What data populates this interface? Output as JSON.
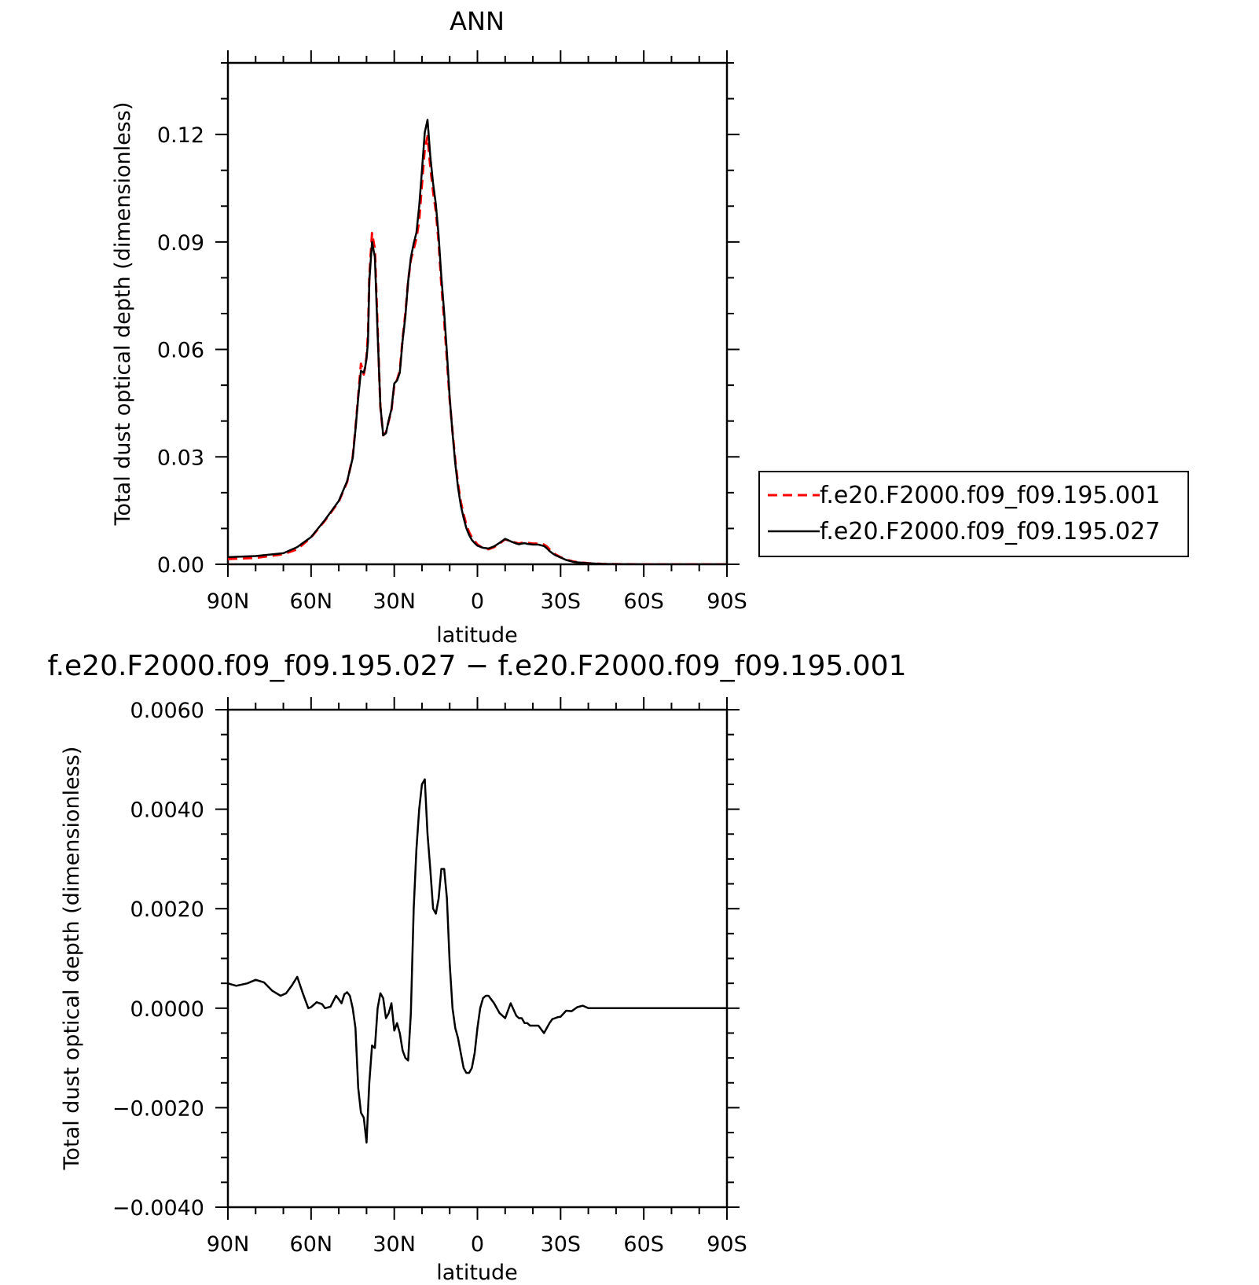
{
  "chart_data": [
    {
      "type": "line",
      "title": "ANN",
      "xlabel": "latitude",
      "ylabel": "Total dust optical depth (dimensionless)",
      "xlim": [
        90,
        -90
      ],
      "ylim": [
        0,
        0.14
      ],
      "x_ticks": [
        {
          "value": 90,
          "label": "90N"
        },
        {
          "value": 60,
          "label": "60N"
        },
        {
          "value": 30,
          "label": "30N"
        },
        {
          "value": 0,
          "label": "0"
        },
        {
          "value": -30,
          "label": "30S"
        },
        {
          "value": -60,
          "label": "60S"
        },
        {
          "value": -90,
          "label": "90S"
        }
      ],
      "y_ticks": [
        {
          "value": 0,
          "label": "0.00"
        },
        {
          "value": 0.03,
          "label": "0.03"
        },
        {
          "value": 0.06,
          "label": "0.06"
        },
        {
          "value": 0.09,
          "label": "0.09"
        },
        {
          "value": 0.12,
          "label": "0.12"
        }
      ],
      "legend_position": "right",
      "series": [
        {
          "name": "f.e20.F2000.f09_f09.195.001",
          "color": "#ff0000",
          "style": "dashed",
          "x": [
            90,
            80,
            70,
            65,
            60,
            55,
            50,
            47,
            45,
            44,
            43,
            42,
            41,
            40.5,
            40,
            39.5,
            39,
            38,
            37,
            36,
            35,
            34,
            33,
            32,
            31,
            30,
            29,
            28,
            27,
            26,
            25,
            24,
            23,
            22,
            21,
            20,
            19,
            18,
            17,
            16,
            15,
            14,
            13,
            12,
            11,
            10,
            9,
            8,
            7,
            6,
            5,
            4,
            3,
            2,
            1,
            0,
            -2,
            -4,
            -6,
            -8,
            -10,
            -12,
            -14,
            -15,
            -16,
            -17,
            -18,
            -20,
            -22,
            -24,
            -25,
            -26,
            -27,
            -28,
            -30,
            -32,
            -35,
            -40,
            -45,
            -50,
            -60,
            -70,
            -80,
            -90
          ],
          "y": [
            0.0015,
            0.0018,
            0.0028,
            0.0042,
            0.0075,
            0.0122,
            0.0175,
            0.023,
            0.03,
            0.038,
            0.047,
            0.056,
            0.053,
            0.055,
            0.058,
            0.064,
            0.08,
            0.0925,
            0.088,
            0.066,
            0.044,
            0.036,
            0.0368,
            0.04,
            0.043,
            0.05,
            0.0515,
            0.054,
            0.063,
            0.07,
            0.079,
            0.085,
            0.088,
            0.091,
            0.096,
            0.106,
            0.116,
            0.1195,
            0.111,
            0.104,
            0.0985,
            0.09,
            0.078,
            0.068,
            0.057,
            0.046,
            0.037,
            0.029,
            0.0225,
            0.0175,
            0.014,
            0.011,
            0.009,
            0.0075,
            0.0065,
            0.0055,
            0.0045,
            0.0042,
            0.0048,
            0.0058,
            0.007,
            0.0064,
            0.006,
            0.0058,
            0.006,
            0.0062,
            0.006,
            0.0058,
            0.0058,
            0.0055,
            0.005,
            0.0042,
            0.0034,
            0.0028,
            0.002,
            0.0013,
            0.0007,
            0.0003,
            0.0001,
            5e-05,
            0.0,
            0.0,
            0.0,
            0.0
          ]
        },
        {
          "name": "f.e20.F2000.f09_f09.195.027",
          "color": "#000000",
          "style": "solid",
          "x": [
            90,
            80,
            70,
            65,
            60,
            55,
            50,
            47,
            45,
            44,
            43,
            42,
            41,
            40.5,
            40,
            39.5,
            39,
            38,
            37,
            36,
            35,
            34,
            33,
            32,
            31,
            30,
            29,
            28,
            27,
            26,
            25,
            24,
            23,
            22,
            21,
            20,
            19,
            18,
            17,
            16,
            15,
            14,
            13,
            12,
            11,
            10,
            9,
            8,
            7,
            6,
            5,
            4,
            3,
            2,
            1,
            0,
            -2,
            -4,
            -6,
            -8,
            -10,
            -12,
            -14,
            -15,
            -16,
            -17,
            -18,
            -20,
            -22,
            -24,
            -25,
            -26,
            -27,
            -28,
            -30,
            -32,
            -35,
            -40,
            -45,
            -50,
            -60,
            -70,
            -80,
            -90
          ],
          "y": [
            0.002,
            0.0023,
            0.0031,
            0.0048,
            0.0076,
            0.0124,
            0.0177,
            0.0232,
            0.0297,
            0.0376,
            0.0465,
            0.054,
            0.0535,
            0.055,
            0.0575,
            0.062,
            0.079,
            0.09,
            0.0858,
            0.0644,
            0.0443,
            0.036,
            0.0366,
            0.0402,
            0.0433,
            0.0505,
            0.0513,
            0.0535,
            0.0625,
            0.0692,
            0.0789,
            0.0856,
            0.0896,
            0.0926,
            0.1,
            0.1099,
            0.1206,
            0.1241,
            0.114,
            0.1063,
            0.1005,
            0.0918,
            0.0802,
            0.0702,
            0.059,
            0.0465,
            0.0367,
            0.0282,
            0.0215,
            0.0165,
            0.013,
            0.0101,
            0.0082,
            0.0068,
            0.0059,
            0.0052,
            0.0046,
            0.0044,
            0.005,
            0.006,
            0.0071,
            0.0064,
            0.0058,
            0.0056,
            0.0058,
            0.0059,
            0.0057,
            0.0055,
            0.0055,
            0.0051,
            0.0045,
            0.0037,
            0.0031,
            0.0026,
            0.0019,
            0.0012,
            0.0006,
            0.0003,
            0.0001,
            5e-05,
            0.0,
            0.0,
            0.0,
            0.0
          ]
        }
      ]
    },
    {
      "type": "line",
      "title": "f.e20.F2000.f09_f09.195.027 − f.e20.F2000.f09_f09.195.001",
      "xlabel": "latitude",
      "ylabel": "Total dust optical depth (dimensionless)",
      "xlim": [
        90,
        -90
      ],
      "ylim": [
        -0.004,
        0.006
      ],
      "x_ticks": [
        {
          "value": 90,
          "label": "90N"
        },
        {
          "value": 60,
          "label": "60N"
        },
        {
          "value": 30,
          "label": "30N"
        },
        {
          "value": 0,
          "label": "0"
        },
        {
          "value": -30,
          "label": "30S"
        },
        {
          "value": -60,
          "label": "60S"
        },
        {
          "value": -90,
          "label": "90S"
        }
      ],
      "y_ticks": [
        {
          "value": -0.004,
          "label": "−0.0040"
        },
        {
          "value": -0.002,
          "label": "−0.0020"
        },
        {
          "value": 0,
          "label": "0.0000"
        },
        {
          "value": 0.002,
          "label": "0.0020"
        },
        {
          "value": 0.004,
          "label": "0.0040"
        },
        {
          "value": 0.006,
          "label": "0.0060"
        }
      ],
      "series": [
        {
          "color": "#000000",
          "style": "solid",
          "x": [
            90,
            87,
            83,
            80,
            77,
            74,
            71,
            69,
            67,
            65,
            63,
            61,
            60,
            58,
            56,
            55,
            53,
            51,
            50,
            49,
            48,
            47,
            46,
            45,
            44,
            43,
            42,
            41,
            40,
            39,
            38,
            37,
            36,
            35,
            34,
            33,
            32,
            31,
            30,
            29,
            28,
            27,
            26,
            25,
            24,
            23,
            22,
            21,
            20,
            19,
            18,
            17,
            16,
            15,
            14,
            13,
            12,
            11,
            10,
            9,
            8,
            7,
            6,
            5,
            4,
            3,
            2,
            1,
            0,
            -1,
            -2,
            -3,
            -4,
            -6,
            -8,
            -10,
            -12,
            -14,
            -15,
            -16,
            -17,
            -18,
            -19,
            -20,
            -21,
            -22,
            -24,
            -26,
            -27,
            -28,
            -29,
            -30,
            -32,
            -34,
            -36,
            -38,
            -40,
            -42,
            -44,
            -46,
            -48,
            -50,
            -55,
            -60,
            -70,
            -80,
            -90
          ],
          "y": [
            0.0005,
            0.00045,
            0.0005,
            0.00057,
            0.00052,
            0.00035,
            0.00025,
            0.0003,
            0.00045,
            0.00063,
            0.0003,
            0.0,
            2e-05,
            0.00012,
            8e-05,
            0.0,
            3e-05,
            0.00025,
            0.00018,
            0.0001,
            0.00028,
            0.00032,
            0.00025,
            0.0,
            -0.0004,
            -0.0016,
            -0.0021,
            -0.0022,
            -0.0027,
            -0.0015,
            -0.00075,
            -0.0008,
            0.0,
            0.0003,
            0.0002,
            -0.0002,
            -0.0001,
            0.0001,
            -0.00045,
            -0.0003,
            -0.0005,
            -0.00085,
            -0.001,
            -0.00105,
            -0.0001,
            0.002,
            0.0032,
            0.004,
            0.0045,
            0.0046,
            0.0035,
            0.0028,
            0.002,
            0.0019,
            0.0022,
            0.0028,
            0.0028,
            0.0022,
            0.0009,
            0.0,
            -0.0004,
            -0.0006,
            -0.0009,
            -0.0012,
            -0.0013,
            -0.0013,
            -0.0012,
            -0.0009,
            -0.0004,
            0.0,
            0.0002,
            0.00025,
            0.00025,
            0.0001,
            -0.0001,
            -0.0002,
            0.0001,
            -0.00015,
            -0.0002,
            -0.0002,
            -0.0003,
            -0.0003,
            -0.00035,
            -0.00035,
            -0.00035,
            -0.00035,
            -0.0005,
            -0.0003,
            -0.00022,
            -0.0002,
            -0.00018,
            -0.00017,
            -5e-05,
            -6e-05,
            2e-05,
            5e-05,
            0.0,
            0.0,
            0.0,
            0.0,
            0.0,
            0.0,
            0.0,
            0.0,
            0.0,
            0.0,
            0.0
          ]
        }
      ]
    }
  ]
}
